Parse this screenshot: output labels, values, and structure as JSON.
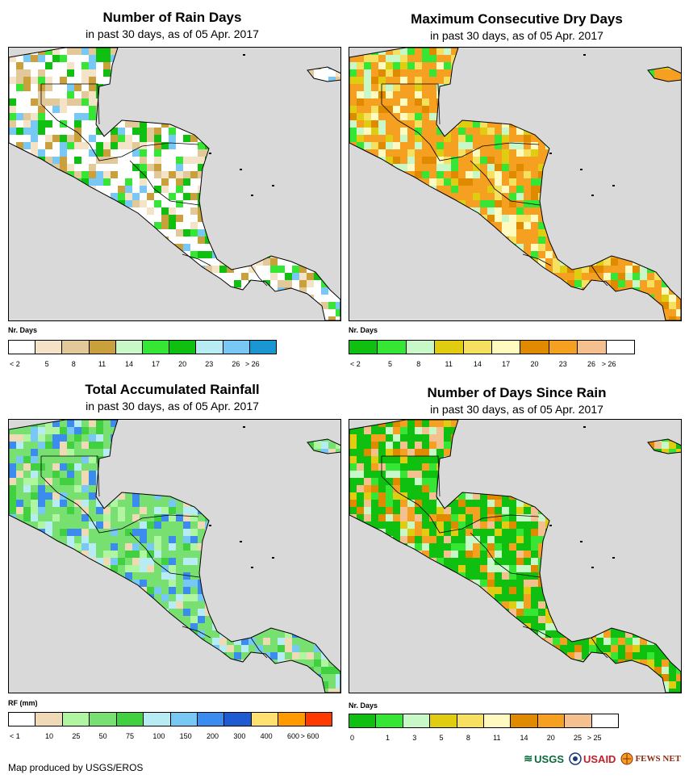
{
  "panels": [
    {
      "title": "Number of Rain Days",
      "subtitle": "in past 30 days, as of 05 Apr. 2017",
      "legend_title": "Nr. Days",
      "legend_labels": [
        "< 2",
        "5",
        "8",
        "11",
        "14",
        "17",
        "20",
        "23",
        "26",
        "> 26"
      ],
      "legend_colors": [
        "#ffffff",
        "#f5e3c8",
        "#e3c99a",
        "#c9a03c",
        "#c8f7c8",
        "#35e635",
        "#10c010",
        "#b8ecf5",
        "#78c8f5",
        "#1a96d2"
      ],
      "palette": {
        "base": "#ffffff",
        "a": "#f5e3c8",
        "b": "#e3c99a",
        "c": "#c9a03c",
        "d": "#35e635",
        "e": "#78c8f5",
        "f": "#10c010"
      }
    },
    {
      "title": "Maximum Consecutive Dry Days",
      "subtitle": "in past 30 days, as of 05 Apr. 2017",
      "legend_title": "Nr. Days",
      "legend_labels": [
        "< 2",
        "5",
        "8",
        "11",
        "14",
        "17",
        "20",
        "23",
        "26",
        "> 26"
      ],
      "legend_colors": [
        "#10c010",
        "#35e635",
        "#c8f7c8",
        "#e0cc10",
        "#f5e060",
        "#fffac0",
        "#e08a00",
        "#f5a020",
        "#f5c090",
        "#ffffff"
      ],
      "palette": {
        "base": "#f5a020",
        "a": "#e08a00",
        "b": "#e0cc10",
        "c": "#f5e060",
        "d": "#c8f7c8",
        "e": "#35e635",
        "f": "#fffac0"
      }
    },
    {
      "title": "Total Accumulated Rainfall",
      "subtitle": "in past 30 days, as of 05 Apr. 2017",
      "legend_title": "RF (mm)",
      "legend_labels": [
        "< 1",
        "10",
        "25",
        "50",
        "75",
        "100",
        "150",
        "200",
        "300",
        "400",
        "600",
        "> 600"
      ],
      "legend_colors": [
        "#ffffff",
        "#f0d9b5",
        "#b0f5a0",
        "#78e070",
        "#40d040",
        "#b8ecf5",
        "#78c8f5",
        "#3c8cf0",
        "#1e5ad2",
        "#ffe070",
        "#ff9a00",
        "#ff3a00"
      ],
      "palette": {
        "base": "#78e070",
        "a": "#b0f5a0",
        "b": "#40d040",
        "c": "#f0d9b5",
        "d": "#b8ecf5",
        "e": "#78c8f5",
        "f": "#3c8cf0"
      }
    },
    {
      "title": "Number of Days Since Rain",
      "subtitle": "in past 30 days, as of 05 Apr. 2017",
      "legend_title": "Nr. Days",
      "legend_labels": [
        "0",
        "1",
        "3",
        "5",
        "8",
        "11",
        "14",
        "20",
        "25",
        "> 25"
      ],
      "legend_colors": [
        "#10c010",
        "#35e635",
        "#c8f7c8",
        "#e0cc10",
        "#f5e060",
        "#fffac0",
        "#e08a00",
        "#f5a020",
        "#f5c090",
        "#ffffff"
      ],
      "palette": {
        "base": "#10c010",
        "a": "#35e635",
        "b": "#c8f7c8",
        "c": "#f5a020",
        "d": "#e08a00",
        "e": "#f5c090",
        "f": "#e0cc10"
      }
    }
  ],
  "footer": {
    "credit": "Map produced by USGS/EROS"
  },
  "logos": {
    "usgs": "USGS",
    "usaid": "USAID",
    "fews": "FEWS NET"
  }
}
